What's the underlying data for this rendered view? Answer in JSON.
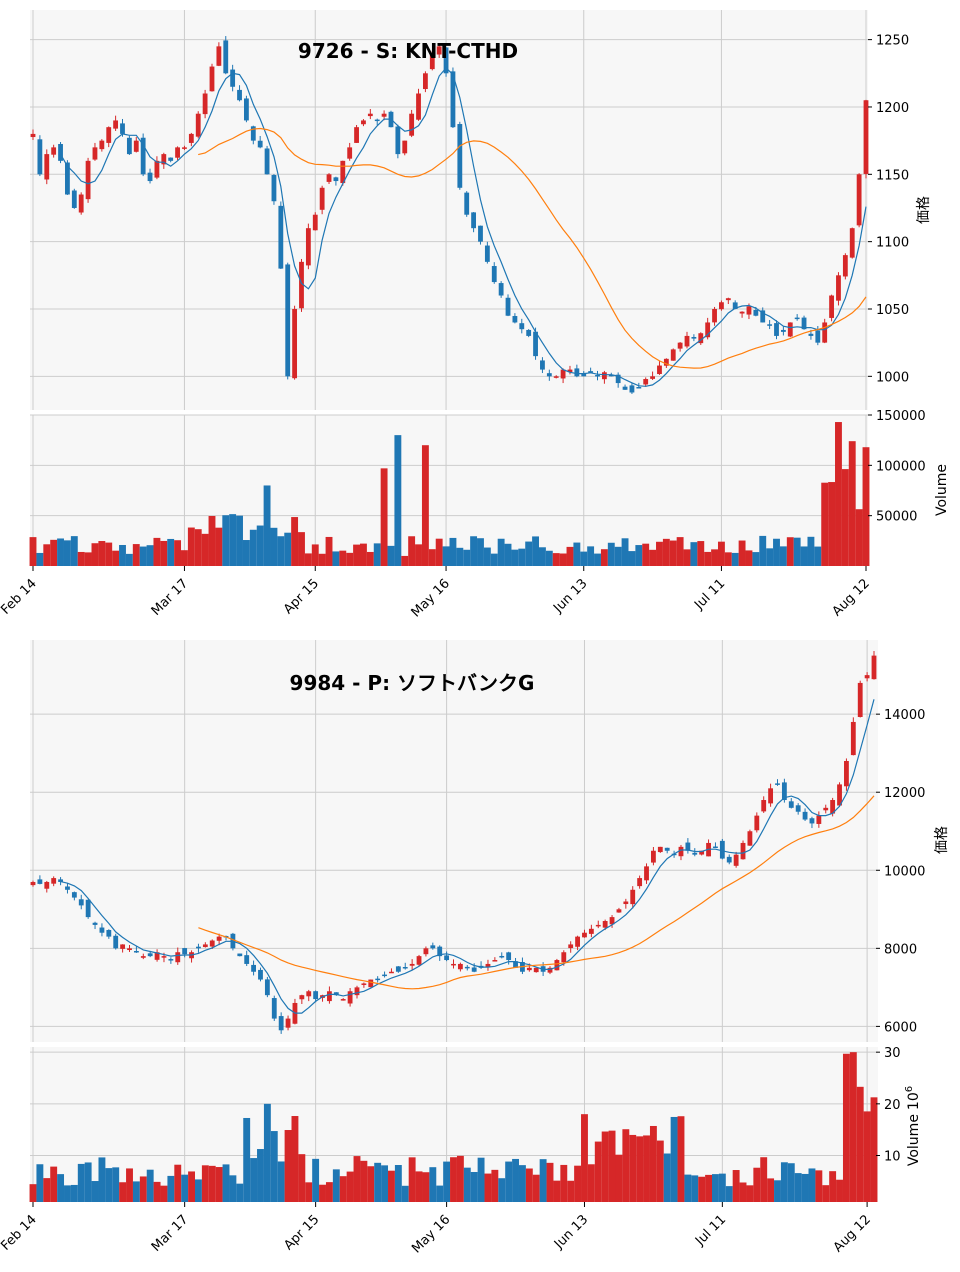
{
  "chart_data": [
    {
      "type": "candlestick",
      "title": "9726 - S: KNT-CTHD",
      "ylabel": "価格",
      "volume_label": "Volume",
      "ylim": [
        975,
        1272
      ],
      "price_ticks": [
        1000,
        1050,
        1100,
        1150,
        1200,
        1250
      ],
      "volume_ylim": [
        0,
        150000
      ],
      "volume_ticks": [
        50000,
        100000,
        150000
      ],
      "volume_tick_labels": [
        "50000",
        "100000",
        "150000"
      ],
      "x_ticks": [
        {
          "index": 0,
          "label": "Feb 14"
        },
        {
          "index": 22,
          "label": "Mar 17"
        },
        {
          "index": 41,
          "label": "Apr 15"
        },
        {
          "index": 60,
          "label": "May 16"
        },
        {
          "index": 80,
          "label": "Jun 13"
        },
        {
          "index": 100,
          "label": "Jul 11"
        },
        {
          "index": 121,
          "label": "Aug 12"
        }
      ],
      "n_bars": 122,
      "up_color": "#d62728",
      "down_color": "#1f77b4",
      "grid": true,
      "ma_series": [
        {
          "period": 5,
          "color": "#1f77b4"
        },
        {
          "period": 25,
          "color": "#ff7f0e"
        }
      ],
      "close": [
        1180,
        1150,
        1165,
        1170,
        1160,
        1135,
        1125,
        1135,
        1160,
        1170,
        1175,
        1185,
        1190,
        1180,
        1165,
        1175,
        1150,
        1145,
        1160,
        1165,
        1160,
        1170,
        1170,
        1180,
        1195,
        1210,
        1230,
        1245,
        1225,
        1215,
        1205,
        1190,
        1175,
        1170,
        1150,
        1130,
        1080,
        1000,
        1050,
        1085,
        1110,
        1120,
        1140,
        1150,
        1145,
        1160,
        1170,
        1185,
        1190,
        1195,
        1190,
        1195,
        1185,
        1165,
        1175,
        1195,
        1210,
        1225,
        1240,
        1245,
        1225,
        1185,
        1140,
        1120,
        1110,
        1100,
        1085,
        1070,
        1060,
        1045,
        1040,
        1035,
        1030,
        1015,
        1005,
        1000,
        1000,
        1005,
        1005,
        1000,
        1000,
        1003,
        1000,
        1003,
        1000,
        995,
        990,
        988,
        992,
        998,
        1000,
        1008,
        1013,
        1020,
        1025,
        1030,
        1028,
        1032,
        1040,
        1050,
        1055,
        1058,
        1050,
        1048,
        1052,
        1045,
        1040,
        1038,
        1030,
        1033,
        1040,
        1043,
        1035,
        1030,
        1025,
        1040,
        1060,
        1075,
        1090,
        1110,
        1150,
        1205
      ]
    },
    {
      "type": "candlestick",
      "title": "9984 - P: ソフトバンクG",
      "ylabel": "価格",
      "volume_label": "Volume",
      "volume_exponent": "6",
      "ylim": [
        5600,
        15900
      ],
      "price_ticks": [
        6000,
        8000,
        10000,
        12000,
        14000
      ],
      "volume_ylim": [
        1,
        31
      ],
      "volume_ticks": [
        10,
        20,
        30
      ],
      "volume_tick_labels": [
        "10",
        "20",
        "30"
      ],
      "x_ticks": [
        {
          "index": 0,
          "label": "Feb 14"
        },
        {
          "index": 22,
          "label": "Mar 17"
        },
        {
          "index": 41,
          "label": "Apr 15"
        },
        {
          "index": 60,
          "label": "May 16"
        },
        {
          "index": 80,
          "label": "Jun 13"
        },
        {
          "index": 100,
          "label": "Jul 11"
        },
        {
          "index": 121,
          "label": "Aug 12"
        }
      ],
      "n_bars": 123,
      "up_color": "#d62728",
      "down_color": "#1f77b4",
      "grid": true,
      "ma_series": [
        {
          "period": 5,
          "color": "#1f77b4"
        },
        {
          "period": 25,
          "color": "#ff7f0e"
        }
      ],
      "close": [
        9700,
        9650,
        9700,
        9800,
        9700,
        9500,
        9300,
        9100,
        8800,
        8600,
        8400,
        8300,
        8000,
        8100,
        8000,
        7900,
        7800,
        7800,
        7900,
        7800,
        7700,
        7900,
        7850,
        7900,
        8000,
        8100,
        8200,
        8300,
        8300,
        8000,
        7800,
        7600,
        7400,
        7200,
        6800,
        6200,
        5900,
        6200,
        6600,
        6800,
        6900,
        6700,
        6800,
        6900,
        6800,
        6700,
        6900,
        7000,
        7100,
        7200,
        7200,
        7300,
        7400,
        7400,
        7500,
        7600,
        7800,
        8000,
        8000,
        7800,
        7700,
        7600,
        7600,
        7500,
        7400,
        7500,
        7600,
        7700,
        7800,
        7700,
        7500,
        7400,
        7500,
        7500,
        7400,
        7500,
        7700,
        7900,
        8100,
        8300,
        8400,
        8500,
        8600,
        8700,
        8800,
        9000,
        9200,
        9500,
        9800,
        10100,
        10500,
        10600,
        10500,
        10400,
        10600,
        10500,
        10400,
        10500,
        10700,
        10600,
        10300,
        10200,
        10400,
        10700,
        11000,
        11400,
        11800,
        12100,
        12200,
        11800,
        11600,
        11500,
        11300,
        11200,
        11400,
        11600,
        11800,
        12200,
        12800,
        13800,
        14800,
        15000,
        15500
      ]
    }
  ]
}
